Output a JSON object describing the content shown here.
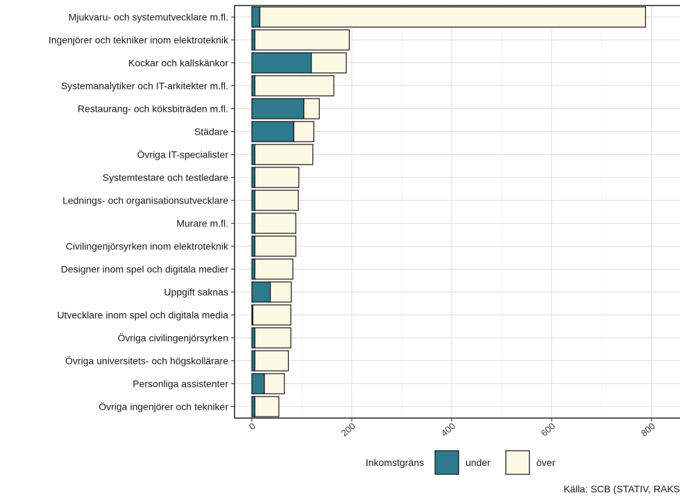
{
  "chart_data": {
    "type": "bar",
    "orientation": "horizontal",
    "stacked": true,
    "categories": [
      "Mjukvaru- och systemutvecklare m.fl.",
      "Ingenjörer och tekniker inom elektroteknik",
      "Kockar och kallskänkor",
      "Systemanalytiker och IT-arkitekter m.fl.",
      "Restaurang- och köksbiträden m.fl.",
      "Städare",
      "Övriga IT-specialister",
      "Systemtestare och testledare",
      "Lednings- och organisationsutvecklare",
      "Murare m.fl.",
      "Civilingenjörsyrken inom elektroteknik",
      "Designer inom spel och digitala medier",
      "Uppgift saknas",
      "Utvecklare inom spel och digitala media",
      "Övriga civilingenjörsyrken",
      "Övriga universitets- och högskollärare",
      "Personliga assistenter",
      "Övriga ingenjörer och tekniker"
    ],
    "series": [
      {
        "name": "under",
        "color": "#2e7a8c",
        "values": [
          16,
          6,
          119,
          6,
          104,
          84,
          6,
          6,
          6,
          6,
          6,
          6,
          37,
          2,
          6,
          6,
          25,
          6
        ]
      },
      {
        "name": "över",
        "color": "#fdf8e4",
        "values": [
          772,
          189,
          70,
          158,
          31,
          40,
          116,
          88,
          87,
          82,
          82,
          76,
          42,
          76,
          72,
          67,
          40,
          48
        ]
      }
    ],
    "xlim": [
      -38,
      810
    ],
    "xticks": [
      0,
      200,
      400,
      600,
      800
    ],
    "xtick_labels": [
      "0",
      "200",
      "400",
      "600",
      "800"
    ],
    "xlabel": "",
    "ylabel": "",
    "grid": true,
    "legend": {
      "title": "Inkomstgräns",
      "position": "bottom"
    }
  },
  "source_text": "Källa: SCB (STATIV, RAKS"
}
